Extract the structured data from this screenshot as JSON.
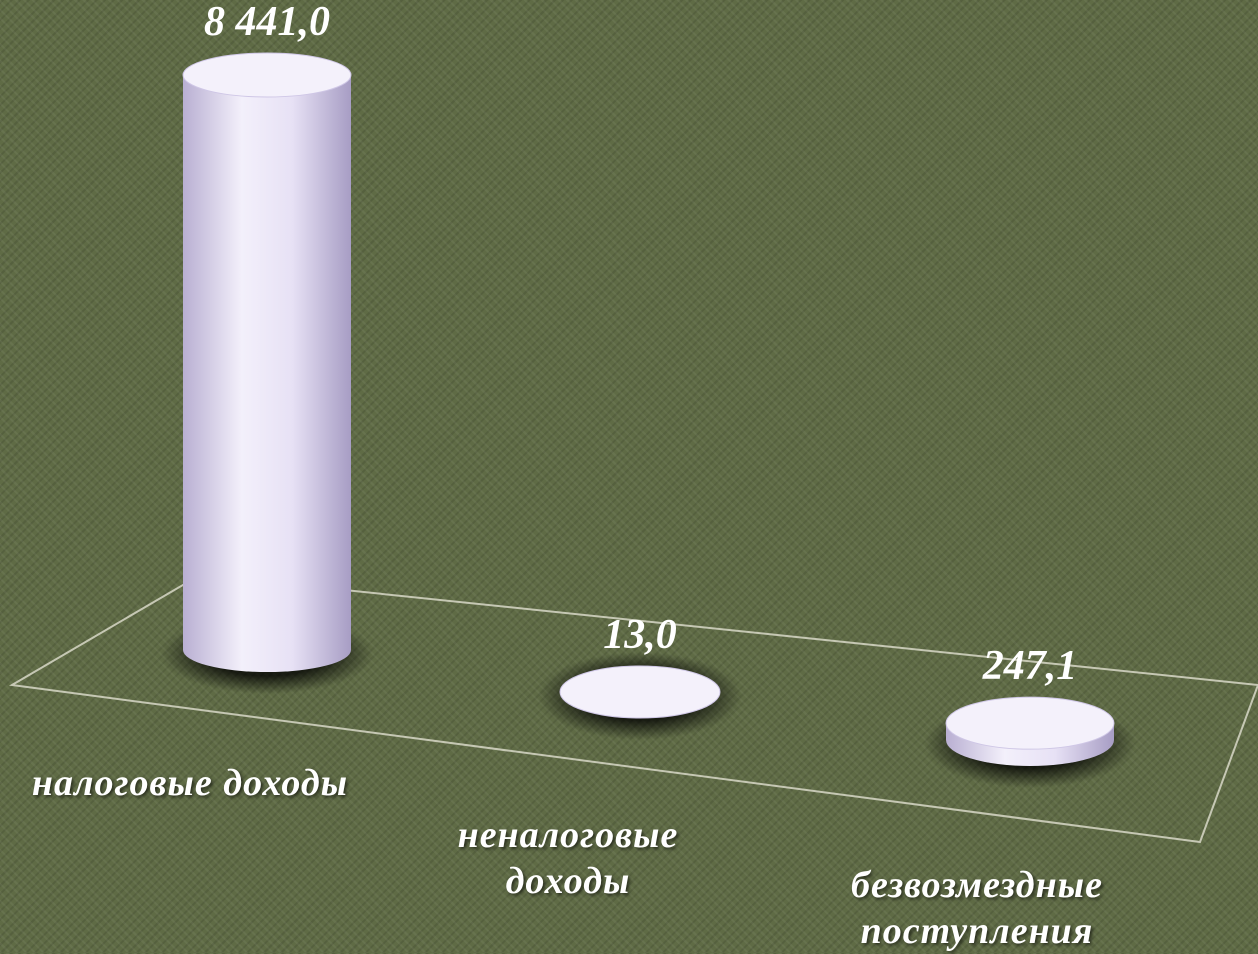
{
  "chart_data": {
    "type": "bar",
    "style": "3d-cylinder",
    "categories": [
      "налоговые доходы",
      "неналоговые доходы",
      "безвозмездные поступления"
    ],
    "category_lines": [
      [
        "налоговые доходы"
      ],
      [
        "неналоговые",
        "доходы"
      ],
      [
        "безвозмездные",
        "поступления"
      ]
    ],
    "values": [
      8441.0,
      13.0,
      247.1
    ],
    "value_labels": [
      "8 441,0",
      "13,0",
      "247,1"
    ],
    "title": "",
    "xlabel": "",
    "ylabel": "",
    "ylim": [
      0,
      8441.0
    ],
    "grid": false,
    "legend": "none",
    "colors": {
      "background": "#5f6b45",
      "bar_face": "#ddd6f0",
      "bar_top": "#f4f1fb",
      "floor_line": "#d8d8c8",
      "text": "#ffffff"
    }
  }
}
